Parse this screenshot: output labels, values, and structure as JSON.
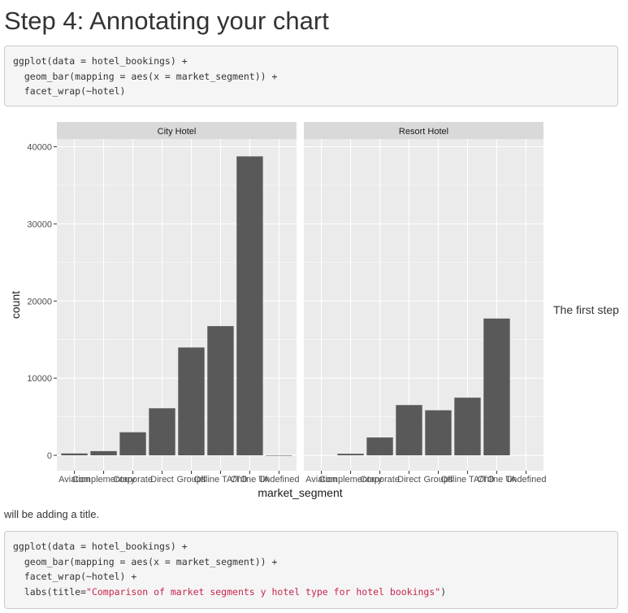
{
  "heading": "Step 4: Annotating your chart",
  "code1": {
    "lines": [
      "ggplot(data = hotel_bookings) +",
      "  geom_bar(mapping = aes(x = market_segment)) +",
      "  facet_wrap(~hotel)"
    ]
  },
  "side_text": "The first step",
  "continue_text": "will be adding a title.",
  "code2": {
    "lines": [
      "ggplot(data = hotel_bookings) +",
      "  geom_bar(mapping = aes(x = market_segment)) +",
      "  facet_wrap(~hotel) +"
    ],
    "labs_prefix": "  labs(title=",
    "labs_string": "\"Comparison of market segments y hotel type for hotel bookings\"",
    "labs_suffix": ")"
  },
  "chart_data": {
    "type": "bar",
    "facet_by": "hotel",
    "xlabel": "market_segment",
    "ylabel": "count",
    "ylim": [
      -2000,
      41000
    ],
    "yticks": [
      0,
      10000,
      20000,
      30000,
      40000
    ],
    "categories": [
      "Aviation",
      "Complementary",
      "Corporate",
      "Direct",
      "Groups",
      "Offline TA/TO",
      "Online TA",
      "Undefined"
    ],
    "grid": true,
    "colors": {
      "panel": "#ebebeb",
      "strip": "#d9d9d9",
      "bar": "#595959",
      "grid": "#ffffff"
    },
    "facets": [
      {
        "name": "City Hotel",
        "values": [
          235,
          542,
          2986,
          6093,
          13975,
          16747,
          38748,
          2
        ]
      },
      {
        "name": "Resort Hotel",
        "values": [
          0,
          201,
          2309,
          6513,
          5836,
          7472,
          17729,
          0
        ]
      }
    ]
  }
}
